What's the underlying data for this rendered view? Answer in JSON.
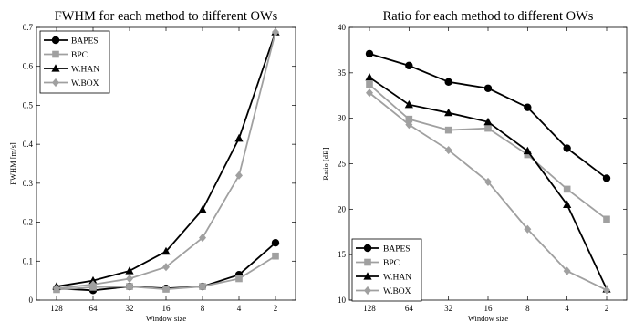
{
  "chart_data": [
    {
      "type": "line",
      "title": "FWHM for each method to different OWs",
      "xlabel": "Window size",
      "ylabel": "FWHM [m/s]",
      "categories": [
        "128",
        "64",
        "32",
        "16",
        "8",
        "4",
        "2"
      ],
      "ylim": [
        0,
        0.7
      ],
      "yticks": [
        "0",
        "0.1",
        "0.2",
        "0.3",
        "0.4",
        "0.5",
        "0.6",
        "0.7"
      ],
      "grid": false,
      "legend_position": "top-left",
      "series": [
        {
          "name": "BAPES",
          "color": "#000000",
          "marker": "circle",
          "values": [
            0.03,
            0.025,
            0.035,
            0.03,
            0.035,
            0.065,
            0.147
          ]
        },
        {
          "name": "BPC",
          "color": "#a0a0a0",
          "marker": "square",
          "values": [
            0.027,
            0.033,
            0.035,
            0.028,
            0.035,
            0.055,
            0.113
          ]
        },
        {
          "name": "W.HAN",
          "color": "#000000",
          "marker": "triangle",
          "values": [
            0.035,
            0.05,
            0.075,
            0.125,
            0.232,
            0.415,
            0.688
          ]
        },
        {
          "name": "W.BOX",
          "color": "#a0a0a0",
          "marker": "diamond",
          "values": [
            0.03,
            0.04,
            0.055,
            0.085,
            0.16,
            0.32,
            0.688
          ]
        }
      ]
    },
    {
      "type": "line",
      "title": "Ratio for each method to different OWs",
      "xlabel": "Window size",
      "ylabel": "Ratio [dB]",
      "categories": [
        "128",
        "64",
        "32",
        "16",
        "8",
        "4",
        "2"
      ],
      "ylim": [
        10,
        40
      ],
      "yticks": [
        "10",
        "15",
        "20",
        "25",
        "30",
        "35",
        "40"
      ],
      "grid": false,
      "legend_position": "bottom-left",
      "series": [
        {
          "name": "BAPES",
          "color": "#000000",
          "marker": "circle",
          "values": [
            37.1,
            35.8,
            34.0,
            33.3,
            31.2,
            26.7,
            23.4
          ]
        },
        {
          "name": "BPC",
          "color": "#a0a0a0",
          "marker": "square",
          "values": [
            33.7,
            29.9,
            28.7,
            28.9,
            26.0,
            22.2,
            18.9
          ]
        },
        {
          "name": "W.HAN",
          "color": "#000000",
          "marker": "triangle",
          "values": [
            34.5,
            31.5,
            30.6,
            29.6,
            26.4,
            20.5,
            11.2
          ]
        },
        {
          "name": "W.BOX",
          "color": "#a0a0a0",
          "marker": "diamond",
          "values": [
            32.8,
            29.3,
            26.5,
            23.0,
            17.8,
            13.2,
            11.1
          ]
        }
      ]
    }
  ]
}
